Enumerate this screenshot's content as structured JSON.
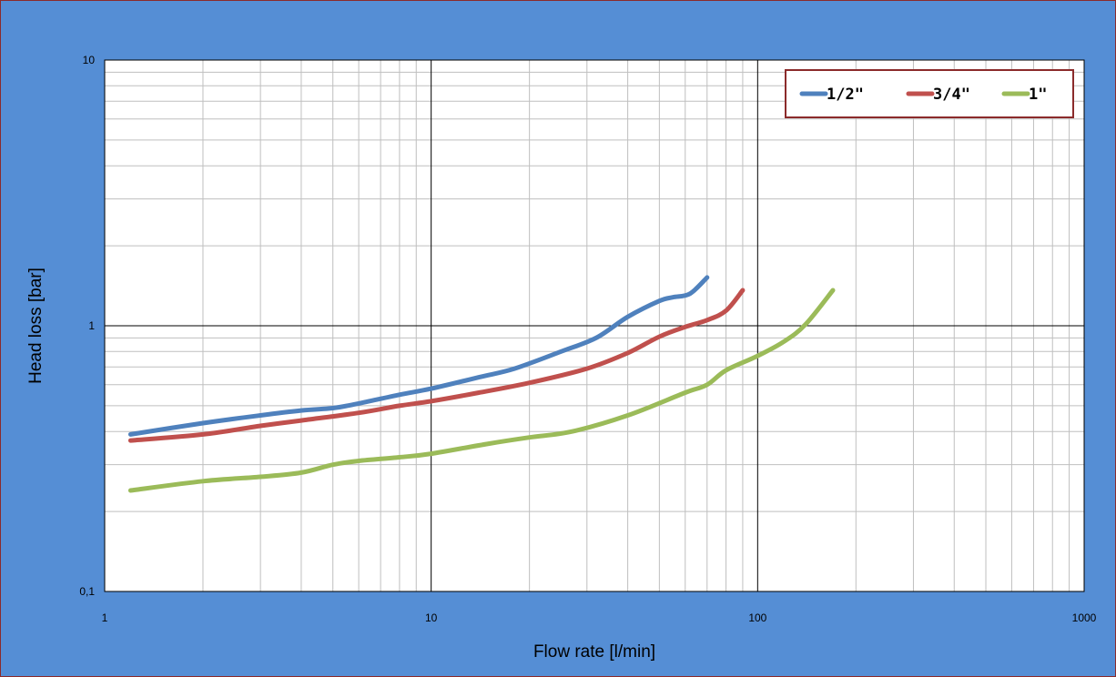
{
  "chart_data": {
    "type": "line",
    "xlabel": "Flow rate [l/min]",
    "ylabel": "Head loss [bar]",
    "xscale": "log",
    "yscale": "log",
    "xlim": [
      1,
      1000
    ],
    "ylim": [
      0.1,
      10
    ],
    "grid": true,
    "legend_position": "top-right",
    "x_tick_labels": [
      "1",
      "10",
      "100",
      "1000"
    ],
    "y_tick_labels": [
      "0,1",
      "1",
      "10"
    ],
    "series": [
      {
        "name": "1/2\"",
        "color": "#4f81bd",
        "x": [
          1.2,
          2,
          3,
          4,
          5,
          6,
          8,
          10,
          14,
          18,
          25,
          32,
          40,
          50,
          55,
          62,
          70
        ],
        "y": [
          0.39,
          0.43,
          0.46,
          0.48,
          0.49,
          0.51,
          0.55,
          0.58,
          0.64,
          0.69,
          0.8,
          0.9,
          1.08,
          1.24,
          1.28,
          1.32,
          1.52
        ]
      },
      {
        "name": "3/4\"",
        "color": "#c0504d",
        "x": [
          1.2,
          2,
          3,
          4,
          6,
          8,
          10,
          14,
          20,
          30,
          40,
          50,
          60,
          70,
          80,
          90
        ],
        "y": [
          0.37,
          0.39,
          0.42,
          0.44,
          0.47,
          0.5,
          0.52,
          0.56,
          0.61,
          0.69,
          0.79,
          0.91,
          0.99,
          1.05,
          1.14,
          1.36
        ]
      },
      {
        "name": "1\"",
        "color": "#9bbb59",
        "x": [
          1.2,
          2,
          3,
          4,
          5,
          6,
          8,
          10,
          15,
          20,
          27,
          40,
          60,
          70,
          80,
          100,
          120,
          140,
          170
        ],
        "y": [
          0.24,
          0.26,
          0.27,
          0.28,
          0.3,
          0.31,
          0.32,
          0.33,
          0.36,
          0.38,
          0.4,
          0.46,
          0.56,
          0.6,
          0.68,
          0.77,
          0.87,
          1.01,
          1.36
        ]
      }
    ]
  }
}
